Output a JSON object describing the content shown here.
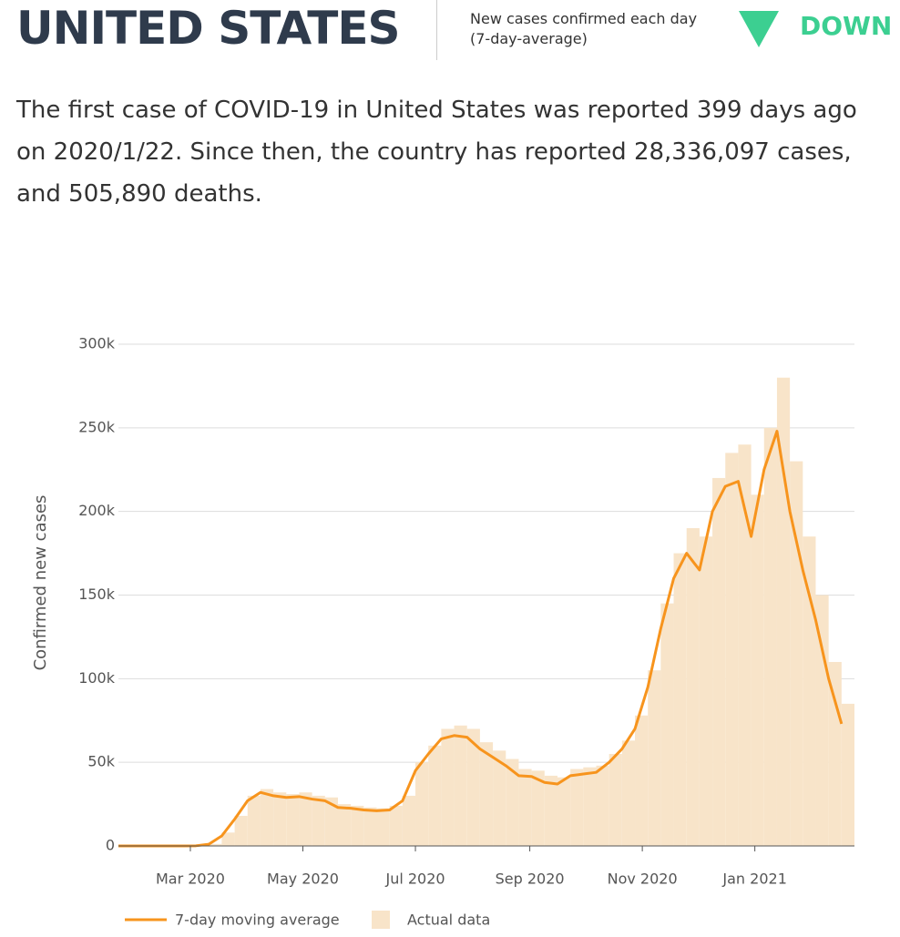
{
  "header": {
    "title": "UNITED STATES",
    "indicator_label": "New cases confirmed each day (7-day-average)",
    "trend": "DOWN"
  },
  "summary": "The first case of COVID-19 in United States was reported 399 days ago on 2020/1/22. Since then, the country has reported 28,336,097 cases, and 505,890 deaths.",
  "chart_data": {
    "type": "line",
    "ylabel": "Confirmed new cases",
    "x": [
      "2020-01-22",
      "2020-01-29",
      "2020-02-05",
      "2020-02-12",
      "2020-02-19",
      "2020-02-26",
      "2020-03-04",
      "2020-03-11",
      "2020-03-18",
      "2020-03-25",
      "2020-04-01",
      "2020-04-08",
      "2020-04-15",
      "2020-04-22",
      "2020-04-29",
      "2020-05-06",
      "2020-05-13",
      "2020-05-20",
      "2020-05-27",
      "2020-06-03",
      "2020-06-10",
      "2020-06-17",
      "2020-06-24",
      "2020-07-01",
      "2020-07-08",
      "2020-07-15",
      "2020-07-22",
      "2020-07-29",
      "2020-08-05",
      "2020-08-12",
      "2020-08-19",
      "2020-08-26",
      "2020-09-02",
      "2020-09-09",
      "2020-09-16",
      "2020-09-23",
      "2020-09-30",
      "2020-10-07",
      "2020-10-14",
      "2020-10-21",
      "2020-10-28",
      "2020-11-04",
      "2020-11-11",
      "2020-11-18",
      "2020-11-25",
      "2020-12-02",
      "2020-12-09",
      "2020-12-16",
      "2020-12-23",
      "2020-12-30",
      "2021-01-06",
      "2021-01-13",
      "2021-01-20",
      "2021-01-27",
      "2021-02-03",
      "2021-02-10",
      "2021-02-17"
    ],
    "series": [
      {
        "name": "Actual data",
        "type": "bar",
        "color": "#f8e4c9",
        "values": [
          0,
          0,
          0,
          0,
          0,
          0,
          200,
          1200,
          8000,
          18000,
          30000,
          34000,
          32000,
          31000,
          32000,
          30000,
          29000,
          25000,
          24000,
          23000,
          22500,
          24000,
          30000,
          50000,
          60000,
          70000,
          72000,
          70000,
          62000,
          57000,
          52000,
          46000,
          45000,
          42000,
          41000,
          46000,
          47000,
          48000,
          55000,
          63000,
          78000,
          105000,
          145000,
          175000,
          190000,
          185000,
          220000,
          235000,
          240000,
          210000,
          250000,
          280000,
          230000,
          185000,
          150000,
          110000,
          85000
        ]
      },
      {
        "name": "7-day moving average",
        "type": "line",
        "color": "#f7941d",
        "values": [
          0,
          0,
          0,
          0,
          0,
          0,
          100,
          1000,
          6000,
          16000,
          27000,
          32000,
          30000,
          29000,
          29500,
          28000,
          27000,
          23000,
          22500,
          21500,
          21000,
          21500,
          27000,
          45000,
          55000,
          64000,
          66000,
          65000,
          58000,
          53000,
          48000,
          42000,
          41500,
          38000,
          37000,
          42000,
          43000,
          44000,
          50000,
          58000,
          70000,
          95000,
          130000,
          160000,
          175000,
          165000,
          200000,
          215000,
          218000,
          185000,
          225000,
          248000,
          200000,
          165000,
          135000,
          100000,
          73000
        ]
      }
    ],
    "xlim": [
      "2020-01-22",
      "2021-02-24"
    ],
    "xticks": [
      {
        "value": "2020-03-01",
        "label": "Mar 2020"
      },
      {
        "value": "2020-05-01",
        "label": "May 2020"
      },
      {
        "value": "2020-07-01",
        "label": "Jul 2020"
      },
      {
        "value": "2020-09-01",
        "label": "Sep 2020"
      },
      {
        "value": "2020-11-01",
        "label": "Nov 2020"
      },
      {
        "value": "2021-01-01",
        "label": "Jan 2021"
      }
    ],
    "ylim": [
      0,
      300000
    ],
    "yticks": [
      0,
      {
        "value": 50000,
        "label": "50k"
      },
      {
        "value": 100000,
        "label": "100k"
      },
      {
        "value": 150000,
        "label": "150k"
      },
      {
        "value": 200000,
        "label": "200k"
      },
      {
        "value": 250000,
        "label": "250k"
      },
      {
        "value": 300000,
        "label": "300k"
      }
    ],
    "grid": true
  }
}
